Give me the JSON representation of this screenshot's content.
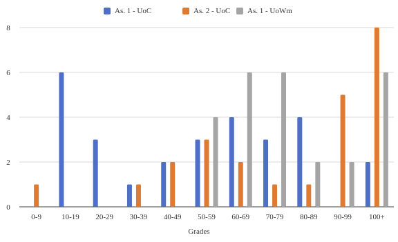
{
  "chart_data": {
    "type": "bar",
    "categories": [
      "0-9",
      "10-19",
      "20-29",
      "30-39",
      "40-49",
      "50-59",
      "60-69",
      "70-79",
      "80-89",
      "90-99",
      "100+"
    ],
    "series": [
      {
        "name": "As. 1 - UoC",
        "color": "#4f6fc7",
        "values": [
          0,
          6,
          3,
          1,
          2,
          3,
          4,
          3,
          4,
          0,
          2
        ]
      },
      {
        "name": "As. 2 - UoC",
        "color": "#dd7b35",
        "values": [
          1,
          0,
          0,
          1,
          2,
          3,
          2,
          1,
          1,
          5,
          8
        ]
      },
      {
        "name": "As. 1 - UoWm",
        "color": "#a5a5a5",
        "values": [
          0,
          0,
          0,
          0,
          0,
          4,
          6,
          6,
          2,
          2,
          6
        ]
      }
    ],
    "title": "",
    "xlabel": "Grades",
    "ylabel": "",
    "ylim": [
      0,
      8
    ],
    "yticks": [
      0,
      2,
      4,
      6,
      8
    ],
    "grid": true,
    "legend": "top"
  }
}
